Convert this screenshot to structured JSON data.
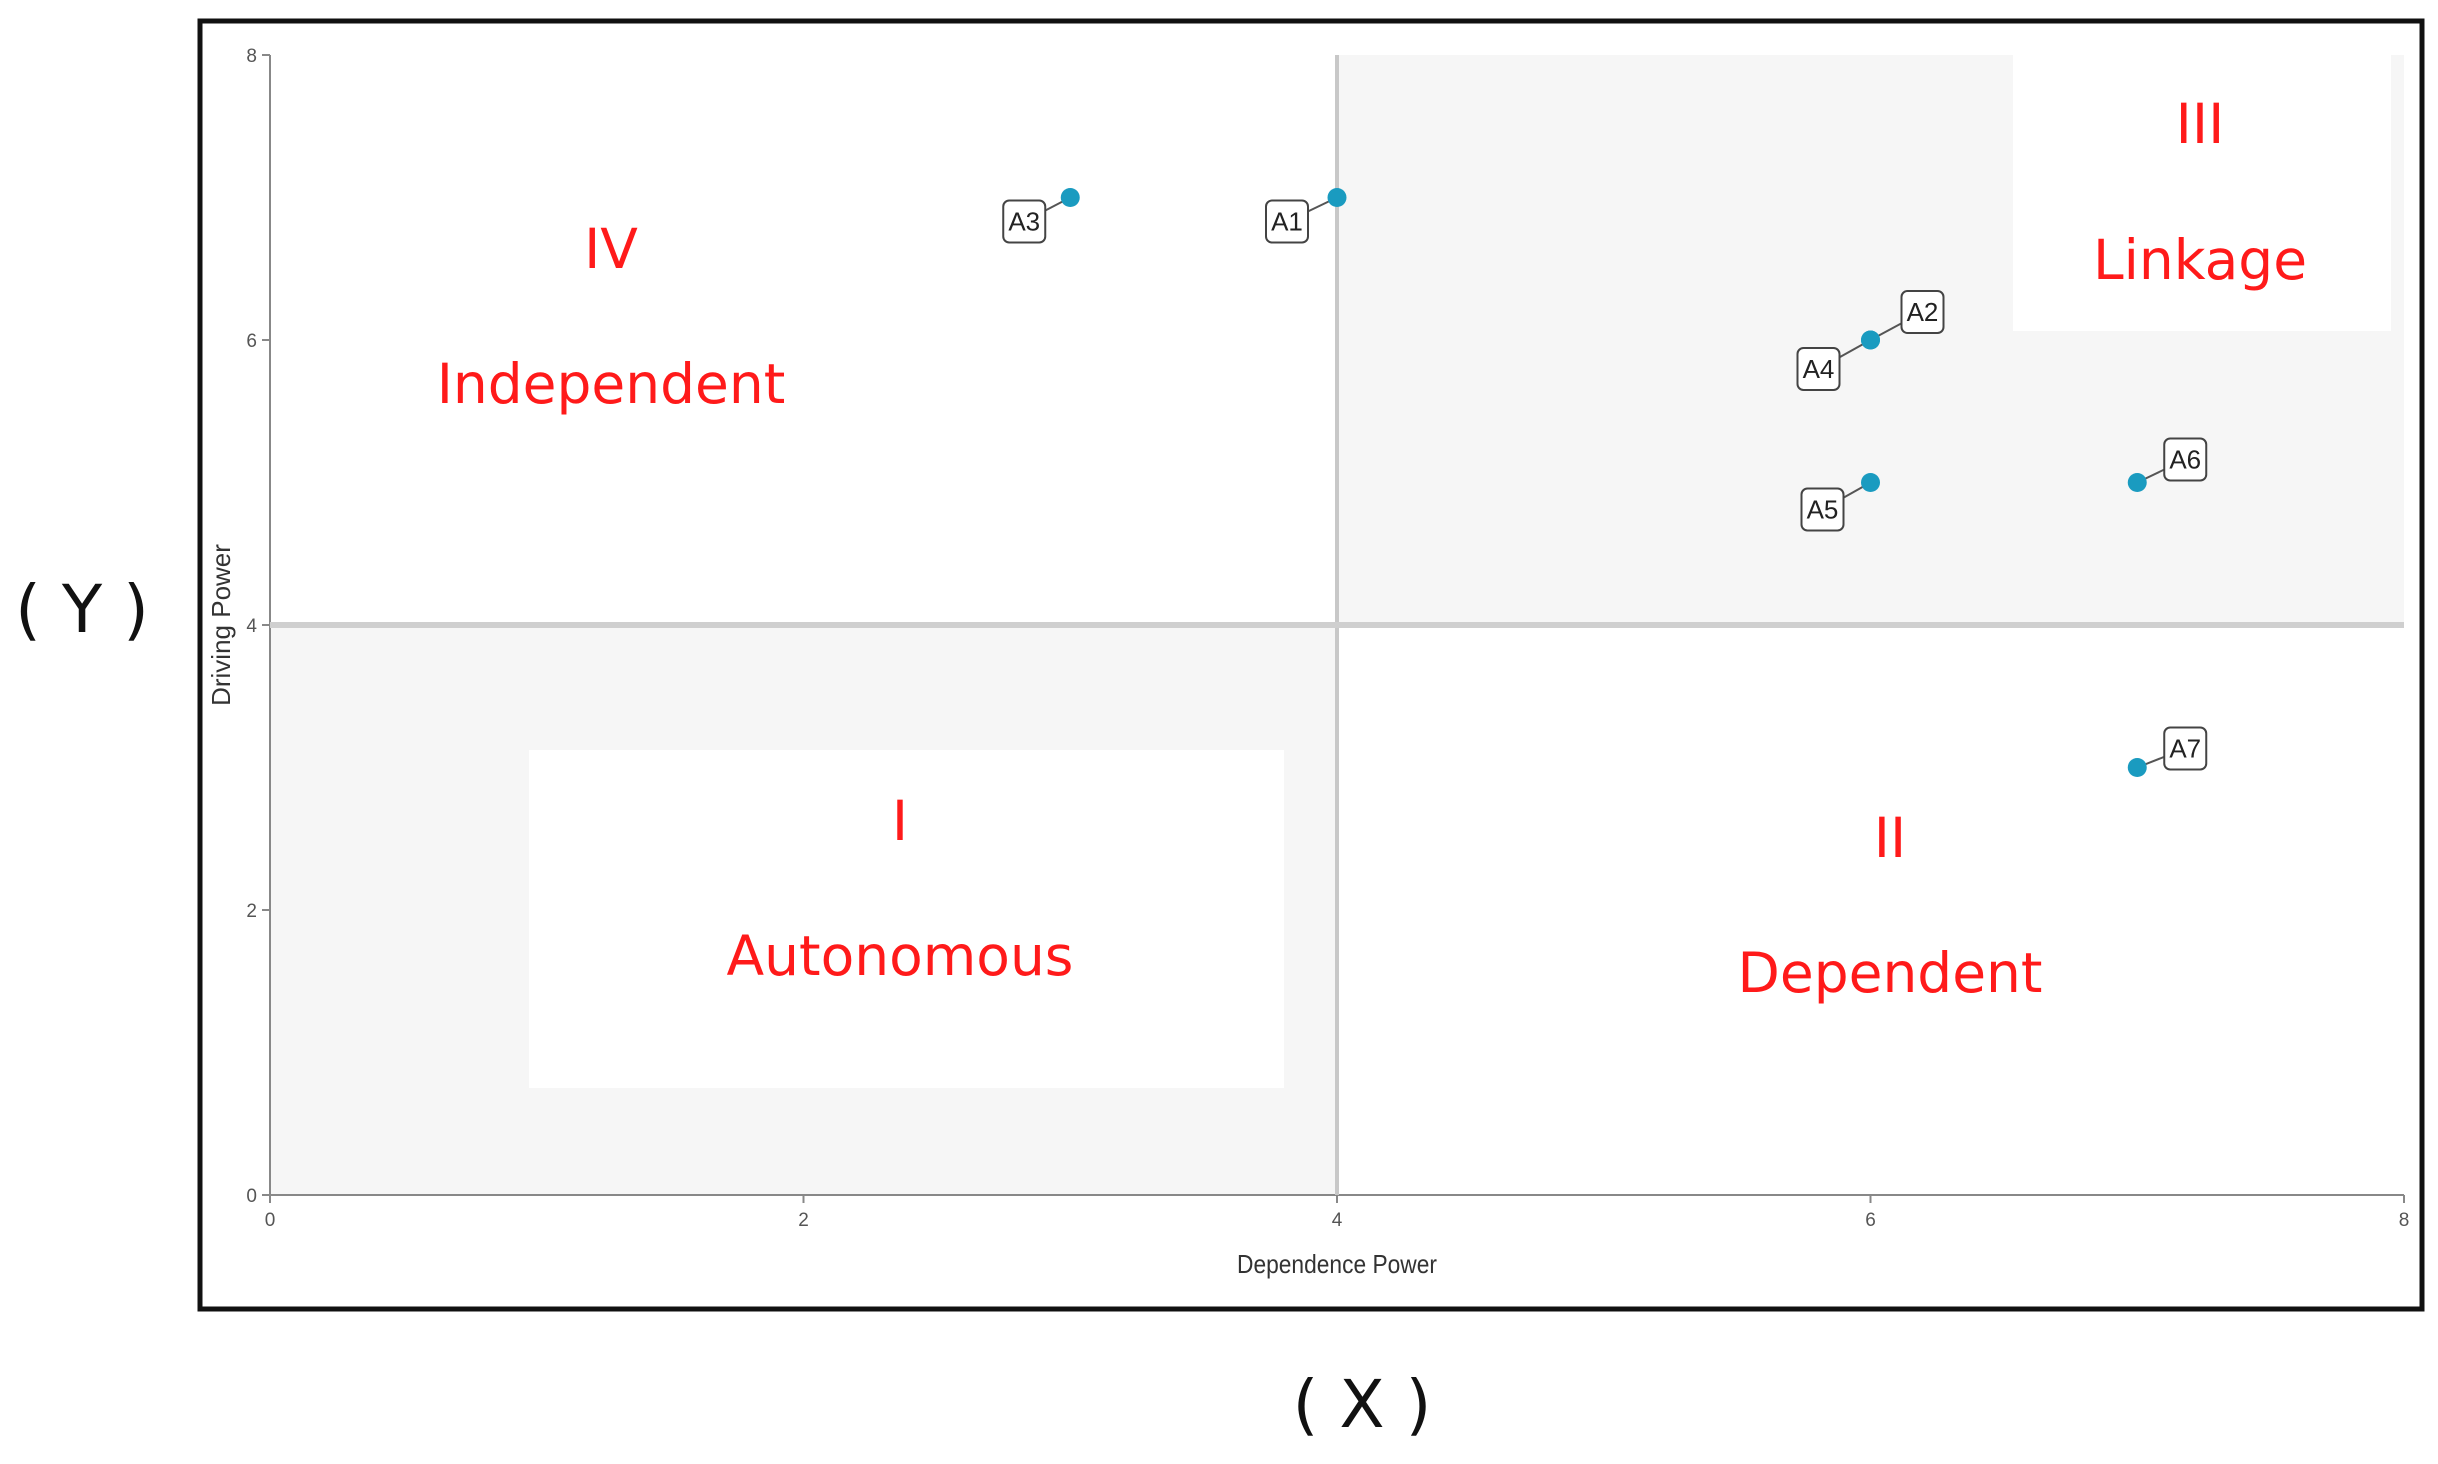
{
  "chart_data": {
    "type": "scatter",
    "xlabel": "Dependence Power",
    "ylabel": "Driving Power",
    "xlim": [
      0,
      8
    ],
    "ylim": [
      0,
      8
    ],
    "x_ticks": [
      0,
      2,
      4,
      6,
      8
    ],
    "y_ticks": [
      0,
      2,
      4,
      6,
      8
    ],
    "divider_x": 4,
    "divider_y": 4,
    "outer_x_label": "( X )",
    "outer_y_label": "( Y )",
    "point_color": "#1a9bc0",
    "quadrant_text_color": "#ff1a1a",
    "quadrants": [
      {
        "numeral": "IV",
        "name": "Independent"
      },
      {
        "numeral": "III",
        "name": "Linkage"
      },
      {
        "numeral": "I",
        "name": "Autonomous"
      },
      {
        "numeral": "II",
        "name": "Dependent"
      }
    ],
    "points": [
      {
        "label": "A1",
        "x": 4,
        "y": 7
      },
      {
        "label": "A2",
        "x": 6,
        "y": 6
      },
      {
        "label": "A3",
        "x": 3,
        "y": 7
      },
      {
        "label": "A4",
        "x": 6,
        "y": 6
      },
      {
        "label": "A5",
        "x": 6,
        "y": 5
      },
      {
        "label": "A6",
        "x": 7,
        "y": 5
      },
      {
        "label": "A7",
        "x": 7,
        "y": 3
      }
    ]
  }
}
